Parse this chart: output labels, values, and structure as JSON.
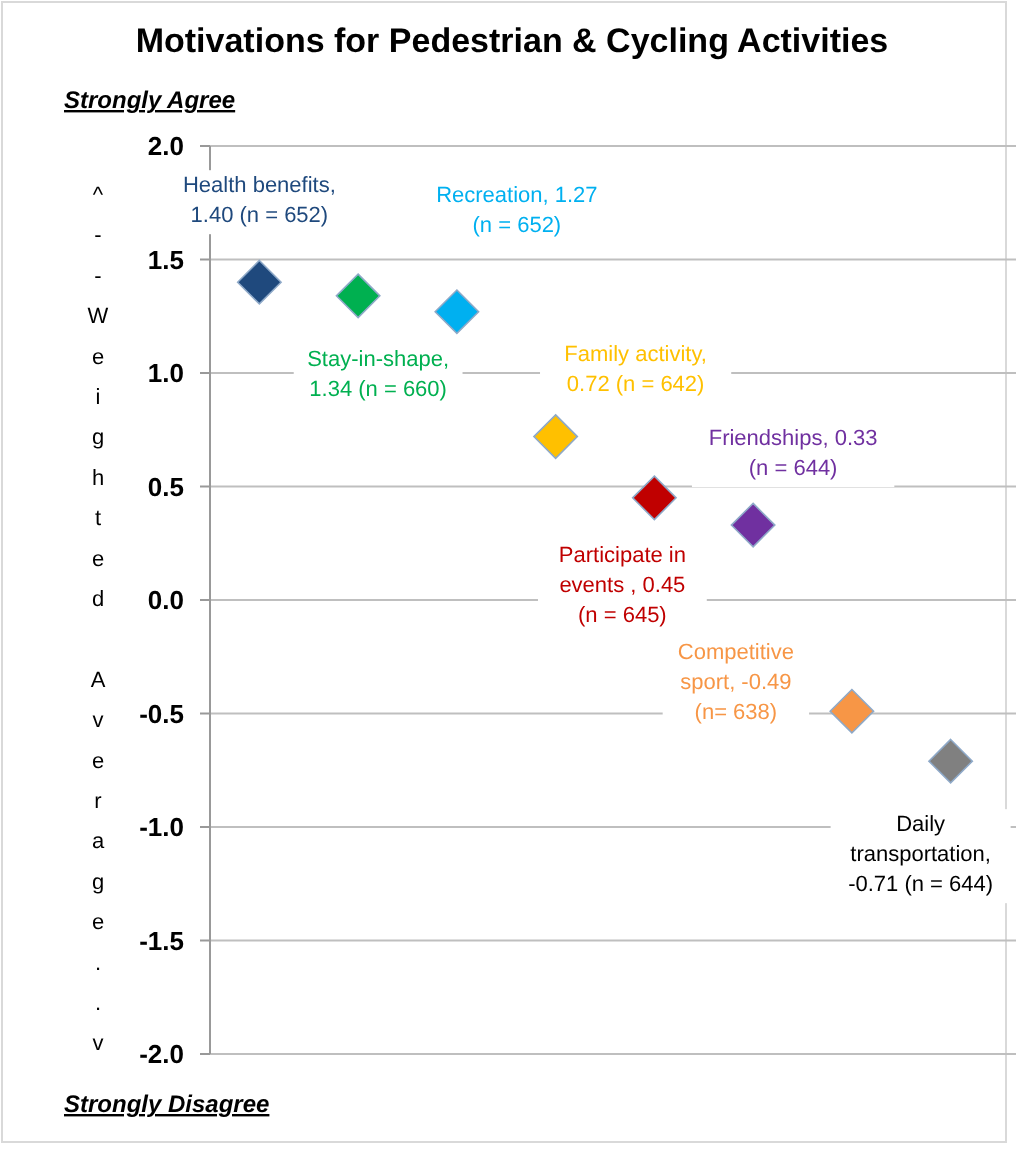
{
  "chart_data": {
    "type": "scatter",
    "title": "Motivations for Pedestrian & Cycling Activities",
    "ylabel": "^--Weighted Average..v",
    "annotations": [
      "Strongly Agree",
      "Strongly Disagree"
    ],
    "categories": [
      null,
      null,
      null,
      null,
      null,
      null,
      null,
      null
    ],
    "values": [
      1.4,
      1.34,
      1.27,
      0.72,
      0.45,
      0.33,
      -0.49,
      -0.71
    ],
    "colors": [
      "#1f497d",
      "#00b050",
      "#00b0f0",
      "#ffc000",
      "#c00000",
      "#7030a0",
      "#f79646",
      "#808080"
    ],
    "value_labels": [
      "Health benefits,\n1.40 (n = 652)",
      "Stay-in-shape,\n1.34 (n = 660)",
      "Recreation, 1.27\n(n = 652)",
      "Family activity,\n0.72 (n = 642)",
      "Participate in\nevents , 0.45\n(n = 645)",
      "Friendships, 0.33\n(n = 644)",
      "Competitive\nsport, -0.49\n(n= 638)",
      "Daily\ntransportation,\n-0.71 (n = 644)"
    ],
    "ylim": [
      -2,
      2
    ],
    "yticks": [
      {
        "value": -2,
        "label": "-2.0"
      },
      {
        "value": -1.5,
        "label": "-1.5"
      },
      {
        "value": -1,
        "label": "-1.0"
      },
      {
        "value": -0.5,
        "label": "-0.5"
      },
      {
        "value": 0,
        "label": "0.0"
      },
      {
        "value": 0.5,
        "label": "0.5"
      },
      {
        "value": 1,
        "label": "1.0"
      },
      {
        "value": 1.5,
        "label": "1.5"
      },
      {
        "value": 2,
        "label": "2.0"
      }
    ],
    "grid": "y",
    "marker": "diamond"
  }
}
